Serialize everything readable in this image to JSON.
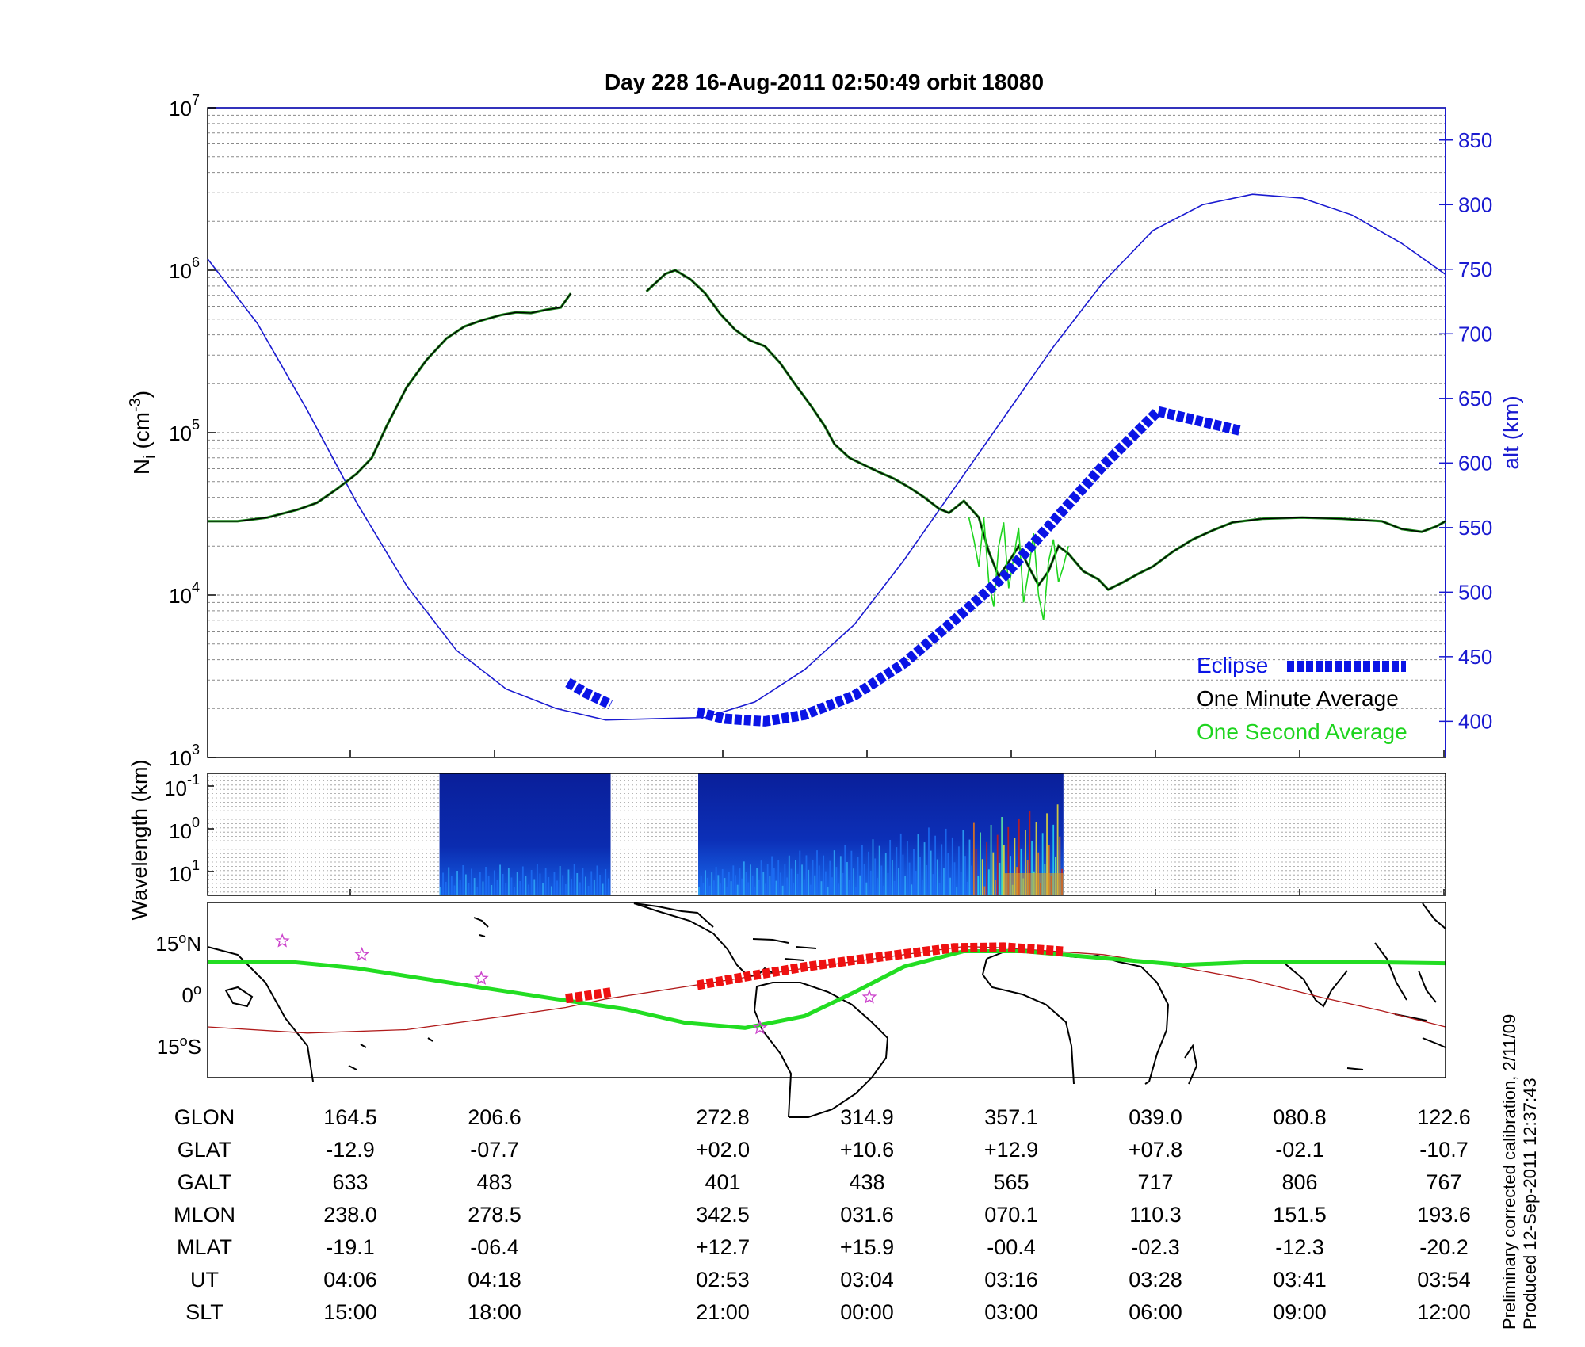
{
  "title": "Day 228  16-Aug-2011 02:50:49   orbit 18080",
  "chart_data": [
    {
      "panel": "ion density and altitude",
      "type": "line",
      "ylabel": {
        "base": "N",
        "sub": "i",
        "unit_open": " (cm",
        "unit_sup": "-3",
        "unit_close": ")"
      },
      "yscale": "log",
      "ylim": [
        1000,
        10000000
      ],
      "y_ticks": [
        {
          "base": "10",
          "exp": "3",
          "value": 1000
        },
        {
          "base": "10",
          "exp": "4",
          "value": 10000
        },
        {
          "base": "10",
          "exp": "5",
          "value": 100000
        },
        {
          "base": "10",
          "exp": "6",
          "value": 1000000
        },
        {
          "base": "10",
          "exp": "7",
          "value": 10000000
        }
      ],
      "y2label": "alt (km)",
      "y2lim": [
        372,
        875
      ],
      "y2_ticks": [
        "400",
        "450",
        "500",
        "550",
        "600",
        "650",
        "700",
        "750",
        "800",
        "850"
      ],
      "grid": true,
      "legend_position": "bottom-right",
      "legend": [
        {
          "label": "Eclipse",
          "color": "#0a14e6"
        },
        {
          "label": "One Minute Average",
          "color": "#000000"
        },
        {
          "label": "One Second Average",
          "color": "#1ed41e"
        }
      ],
      "x_ticks_ut": [
        "04:06",
        "04:18",
        "02:53",
        "03:04",
        "03:16",
        "03:28",
        "03:41",
        "03:54"
      ],
      "colors": {
        "altitude": "#1a1ad0",
        "one_minute": "#000000",
        "one_second": "#1ed41e",
        "eclipse": "#0a14e6"
      },
      "series": [
        {
          "name": "One Minute Average",
          "segments": [
            [
              [
                0,
                28500
              ],
              [
                30,
                28500
              ],
              [
                60,
                30000
              ],
              [
                90,
                33500
              ],
              [
                110,
                37000
              ],
              [
                130,
                45000
              ],
              [
                150,
                56000
              ],
              [
                165,
                70000
              ],
              [
                180,
                110000
              ],
              [
                200,
                190000
              ],
              [
                220,
                280000
              ],
              [
                240,
                380000
              ],
              [
                258,
                450000
              ],
              [
                275,
                490000
              ],
              [
                295,
                530000
              ],
              [
                310,
                550000
              ],
              [
                325,
                545000
              ],
              [
                340,
                570000
              ],
              [
                355,
                590000
              ],
              [
                365,
                720000
              ]
            ],
            [
              [
                441,
                740000
              ],
              [
                460,
                950000
              ],
              [
                470,
                1000000
              ],
              [
                485,
                880000
              ],
              [
                500,
                720000
              ],
              [
                515,
                540000
              ],
              [
                530,
                430000
              ],
              [
                545,
                370000
              ],
              [
                560,
                340000
              ],
              [
                575,
                270000
              ],
              [
                590,
                200000
              ],
              [
                605,
                150000
              ],
              [
                620,
                110000
              ],
              [
                630,
                85000
              ],
              [
                645,
                70000
              ],
              [
                660,
                63000
              ],
              [
                675,
                57000
              ],
              [
                690,
                52000
              ],
              [
                705,
                46000
              ],
              [
                720,
                40000
              ],
              [
                735,
                34000
              ],
              [
                745,
                32000
              ],
              [
                760,
                38000
              ],
              [
                775,
                30000
              ],
              [
                785,
                18500
              ],
              [
                795,
                13000
              ],
              [
                805,
                16000
              ],
              [
                815,
                20000
              ],
              [
                825,
                15000
              ],
              [
                835,
                11500
              ],
              [
                845,
                14000
              ],
              [
                855,
                20000
              ],
              [
                865,
                18000
              ],
              [
                880,
                14000
              ],
              [
                895,
                12500
              ],
              [
                905,
                10800
              ],
              [
                920,
                12000
              ],
              [
                935,
                13500
              ],
              [
                950,
                15000
              ],
              [
                970,
                18500
              ],
              [
                990,
                22000
              ],
              [
                1010,
                25000
              ],
              [
                1030,
                28000
              ],
              [
                1060,
                29500
              ],
              [
                1100,
                30000
              ],
              [
                1140,
                29500
              ],
              [
                1180,
                28500
              ],
              [
                1200,
                25500
              ],
              [
                1220,
                24500
              ],
              [
                1235,
                26500
              ],
              [
                1244,
                28500
              ]
            ]
          ]
        },
        {
          "name": "One Second Average",
          "segments": [
            [
              [
                765,
                30000
              ],
              [
                770,
                22000
              ],
              [
                775,
                15000
              ],
              [
                780,
                30000
              ],
              [
                785,
                12000
              ],
              [
                790,
                8500
              ],
              [
                795,
                20000
              ],
              [
                800,
                28000
              ],
              [
                805,
                11000
              ],
              [
                810,
                17000
              ],
              [
                815,
                26000
              ],
              [
                820,
                9000
              ],
              [
                825,
                14000
              ],
              [
                830,
                24000
              ],
              [
                835,
                10000
              ],
              [
                840,
                7000
              ],
              [
                845,
                16000
              ],
              [
                850,
                22000
              ],
              [
                855,
                12000
              ],
              [
                860,
                15000
              ],
              [
                865,
                20000
              ]
            ]
          ]
        },
        {
          "name": "altitude",
          "axis": "y2",
          "values": [
            [
              0,
              758
            ],
            [
              50,
              708
            ],
            [
              100,
              641
            ],
            [
              150,
              569
            ],
            [
              200,
              505
            ],
            [
              250,
              455
            ],
            [
              300,
              425
            ],
            [
              350,
              410
            ],
            [
              400,
              401
            ],
            [
              450,
              402
            ],
            [
              500,
              403
            ],
            [
              550,
              415
            ],
            [
              600,
              440
            ],
            [
              650,
              475
            ],
            [
              700,
              525
            ],
            [
              750,
              580
            ],
            [
              800,
              635
            ],
            [
              850,
              690
            ],
            [
              900,
              740
            ],
            [
              950,
              780
            ],
            [
              1000,
              800
            ],
            [
              1050,
              808
            ],
            [
              1100,
              805
            ],
            [
              1150,
              792
            ],
            [
              1200,
              770
            ],
            [
              1244,
              746
            ]
          ]
        },
        {
          "name": "Eclipse",
          "axis": "y2",
          "segments": [
            [
              [
                362,
                430
              ],
              [
                380,
                422
              ],
              [
                405,
                413
              ]
            ],
            [
              [
                492,
                407
              ],
              [
                520,
                402
              ],
              [
                560,
                400
              ],
              [
                600,
                405
              ],
              [
                650,
                420
              ],
              [
                700,
                445
              ],
              [
                750,
                478
              ],
              [
                800,
                512
              ],
              [
                850,
                555
              ],
              [
                900,
                598
              ],
              [
                955,
                640
              ],
              [
                1038,
                625
              ]
            ]
          ]
        }
      ]
    },
    {
      "panel": "wavelength spectrogram",
      "type": "heatmap",
      "ylabel": "Wavelength (km)",
      "yscale": "log",
      "y_ticks": [
        {
          "base": "10",
          "exp": "-1"
        },
        {
          "base": "10",
          "exp": "0"
        },
        {
          "base": "10",
          "exp": "1"
        }
      ],
      "grid": true,
      "data_windows": [
        {
          "x_start": 233,
          "x_end": 405,
          "intensity": "low"
        },
        {
          "x_start": 493,
          "x_end": 860,
          "intensity": "rising, peaking near 800-860"
        }
      ]
    },
    {
      "panel": "map",
      "type": "map",
      "y_ticks": [
        {
          "value": "15",
          "suffix": "N"
        },
        {
          "value": "0",
          "suffix": ""
        },
        {
          "value": "15",
          "suffix": "S"
        }
      ],
      "colors": {
        "magnetic_track": "#22dd22",
        "ground_track": "#b01a1a",
        "eclipse": "#ee1111",
        "stars": "#cc44cc"
      },
      "ground_track": [
        [
          0,
          -10.7
        ],
        [
          100,
          -12.5
        ],
        [
          200,
          -11.5
        ],
        [
          300,
          -7.5
        ],
        [
          360,
          -5
        ],
        [
          400,
          -2.5
        ],
        [
          500,
          2
        ],
        [
          600,
          6.5
        ],
        [
          700,
          10.5
        ],
        [
          760,
          12.9
        ],
        [
          800,
          12.5
        ],
        [
          900,
          10.5
        ],
        [
          960,
          7.8
        ],
        [
          1050,
          3
        ],
        [
          1120,
          -2.1
        ],
        [
          1180,
          -6
        ],
        [
          1244,
          -10.7
        ]
      ],
      "magnetic_track": [
        [
          0,
          8.5
        ],
        [
          80,
          8.5
        ],
        [
          150,
          6.5
        ],
        [
          260,
          1.5
        ],
        [
          350,
          -2.5
        ],
        [
          420,
          -5.5
        ],
        [
          480,
          -9.5
        ],
        [
          540,
          -11
        ],
        [
          600,
          -7.5
        ],
        [
          650,
          -0.5
        ],
        [
          700,
          7
        ],
        [
          760,
          11.5
        ],
        [
          820,
          11.5
        ],
        [
          900,
          9.5
        ],
        [
          980,
          7.5
        ],
        [
          1060,
          8.5
        ],
        [
          1120,
          8.5
        ],
        [
          1244,
          8
        ]
      ],
      "eclipse_segments": [
        [
          [
            360,
            -2.4
          ],
          [
            405,
            -0.5
          ]
        ],
        [
          [
            492,
            1.5
          ],
          [
            540,
            4
          ],
          [
            600,
            6.9
          ],
          [
            650,
            8.9
          ],
          [
            700,
            10.7
          ],
          [
            750,
            12.5
          ],
          [
            800,
            12.7
          ],
          [
            860,
            11.5
          ]
        ]
      ],
      "stars": [
        [
          75,
          14.5
        ],
        [
          155,
          10.5
        ],
        [
          275,
          3.5
        ],
        [
          555,
          -11
        ],
        [
          665,
          -2
        ]
      ]
    }
  ],
  "table": {
    "rows": [
      {
        "label": "GLON",
        "values": [
          "164.5",
          "206.6",
          "272.8",
          "314.9",
          "357.1",
          "039.0",
          "080.8",
          "122.6"
        ]
      },
      {
        "label": "GLAT",
        "values": [
          "-12.9",
          "-07.7",
          "+02.0",
          "+10.6",
          "+12.9",
          "+07.8",
          "-02.1",
          "-10.7"
        ]
      },
      {
        "label": "GALT",
        "values": [
          "633",
          "483",
          "401",
          "438",
          "565",
          "717",
          "806",
          "767"
        ]
      },
      {
        "label": "MLON",
        "values": [
          "238.0",
          "278.5",
          "342.5",
          "031.6",
          "070.1",
          "110.3",
          "151.5",
          "193.6"
        ]
      },
      {
        "label": "MLAT",
        "values": [
          "-19.1",
          "-06.4",
          "+12.7",
          "+15.9",
          "-00.4",
          "-02.3",
          "-12.3",
          "-20.2"
        ]
      },
      {
        "label": "UT",
        "values": [
          "04:06",
          "04:18",
          "02:53",
          "03:04",
          "03:16",
          "03:28",
          "03:41",
          "03:54"
        ]
      },
      {
        "label": "SLT",
        "values": [
          "15:00",
          "18:00",
          "21:00",
          "00:00",
          "03:00",
          "06:00",
          "09:00",
          "12:00"
        ]
      }
    ]
  },
  "footer": {
    "line1": "Preliminary corrected calibration, 2/11/09",
    "line2": "Produced 12-Sep-2011 12:37:43"
  }
}
